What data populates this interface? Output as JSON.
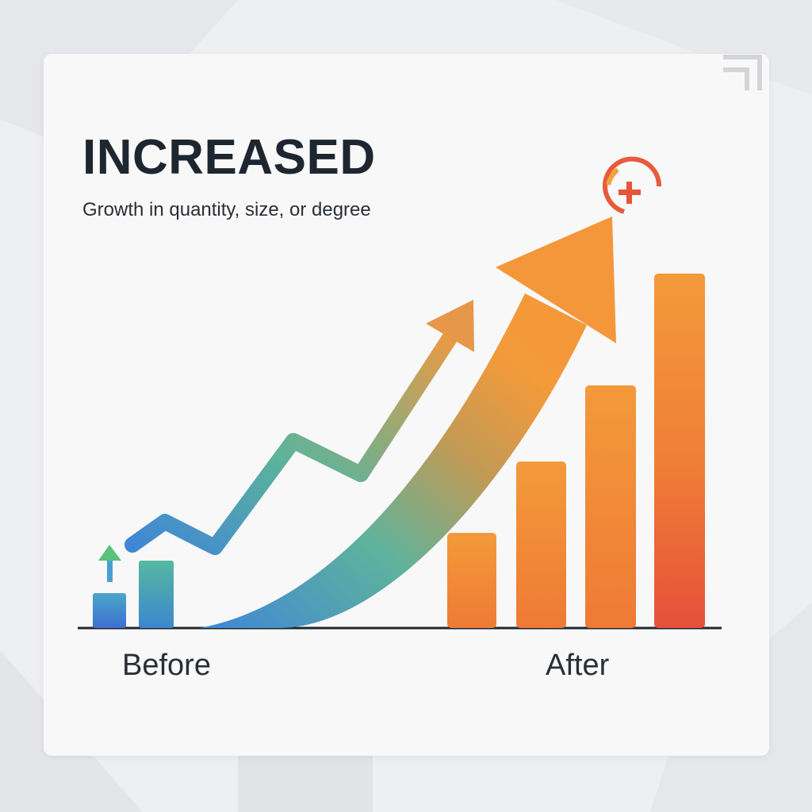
{
  "title": "INCREASED",
  "subtitle": "Growth in quantity, size, or degree",
  "labels": {
    "before": "Before",
    "after": "After"
  },
  "icons": {
    "corner": "corner-bracket-icon",
    "plus_badge": "plus-circle-icon",
    "small_up_arrow": "up-arrow-icon"
  },
  "colors": {
    "title": "#1e2630",
    "teal": "#4fb3a6",
    "blue": "#3f86d6",
    "green": "#58c08a",
    "orange": "#f39a3a",
    "red": "#e8533a"
  }
}
